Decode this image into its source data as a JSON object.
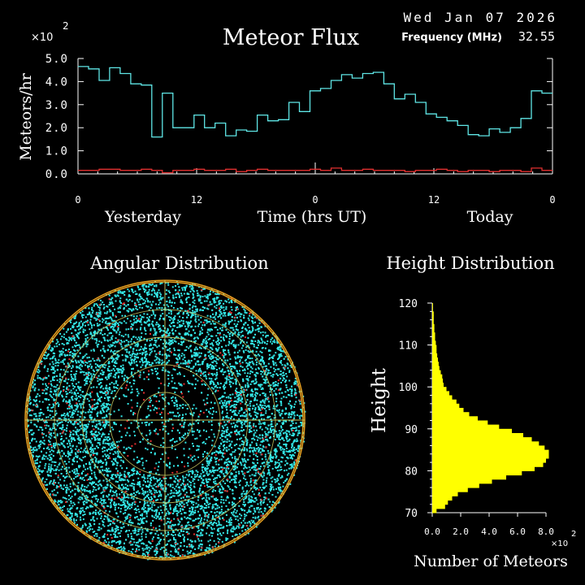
{
  "header": {
    "date": "Wed Jan 07 2026",
    "frequency_label": "Frequency (MHz)",
    "frequency_value": "32.55"
  },
  "colors": {
    "background": "#000000",
    "flux_line": "#5fe6e6",
    "baseline_line": "#e23030",
    "angular_points": "#33e6e6",
    "angular_points_secondary": "#e23030",
    "angular_rings": "#e8a020",
    "angular_crosshair": "#c8c860",
    "histogram_fill": "#ffff00",
    "axis": "#ffffff"
  },
  "chart_data": [
    {
      "type": "line",
      "title": "Meteor Flux",
      "ylabel": "Meteors/hr",
      "xlabel": "Time (hrs UT)",
      "y_multiplier_label": "×10",
      "y_multiplier_exp": "2",
      "ylim": [
        0,
        5
      ],
      "xlim": [
        0,
        48
      ],
      "y_ticks": [
        "0.0",
        "1.0",
        "2.0",
        "3.0",
        "4.0",
        "5.0"
      ],
      "x_ticks": [
        {
          "value": 0,
          "label": "0"
        },
        {
          "value": 12,
          "label": "12"
        },
        {
          "value": 24,
          "label": "0"
        },
        {
          "value": 36,
          "label": "12"
        },
        {
          "value": 48,
          "label": "0"
        }
      ],
      "day_labels": [
        "Yesterday",
        "Today"
      ],
      "step": true,
      "series": [
        {
          "values": [
            4.65,
            4.55,
            4.05,
            4.6,
            4.35,
            3.9,
            3.85,
            1.6,
            3.5,
            2.0,
            2.0,
            2.55,
            2.0,
            2.2,
            1.65,
            1.9,
            1.85,
            2.55,
            2.3,
            2.35,
            3.1,
            2.7,
            3.6,
            3.7,
            4.05,
            4.3,
            4.15,
            4.35,
            4.4,
            3.9,
            3.25,
            3.45,
            3.1,
            2.6,
            2.45,
            2.3,
            2.1,
            1.7,
            1.65,
            1.95,
            1.8,
            2.0,
            2.4,
            3.6,
            3.5
          ]
        },
        {
          "values": [
            0.15,
            0.15,
            0.2,
            0.2,
            0.15,
            0.15,
            0.2,
            0.15,
            0.05,
            0.15,
            0.15,
            0.2,
            0.15,
            0.15,
            0.2,
            0.1,
            0.15,
            0.2,
            0.15,
            0.15,
            0.15,
            0.15,
            0.2,
            0.15,
            0.25,
            0.15,
            0.15,
            0.2,
            0.15,
            0.15,
            0.15,
            0.1,
            0.15,
            0.15,
            0.2,
            0.15,
            0.1,
            0.15,
            0.15,
            0.1,
            0.15,
            0.15,
            0.1,
            0.25,
            0.15
          ]
        }
      ]
    },
    {
      "type": "scatter",
      "title": "Angular Distribution",
      "description_polar": true,
      "rings": 5,
      "cyan_point_count": 9000,
      "red_point_count": 260
    },
    {
      "type": "bar",
      "orientation": "horizontal",
      "title": "Height Distribution",
      "ylabel": "Height",
      "xlabel": "Number of Meteors",
      "x_multiplier_label": "×10",
      "x_multiplier_exp": "2",
      "ylim": [
        70,
        120
      ],
      "xlim": [
        0,
        8
      ],
      "y_ticks": [
        "70",
        "80",
        "90",
        "100",
        "110",
        "120"
      ],
      "x_ticks": [
        "0.0",
        "2.0",
        "4.0",
        "6.0",
        "8.0"
      ],
      "bins": [
        70,
        71,
        72,
        73,
        74,
        75,
        76,
        77,
        78,
        79,
        80,
        81,
        82,
        83,
        84,
        85,
        86,
        87,
        88,
        89,
        90,
        91,
        92,
        93,
        94,
        95,
        96,
        97,
        98,
        99,
        100,
        101,
        102,
        103,
        104,
        105,
        106,
        107,
        108,
        109,
        110,
        111,
        112,
        113,
        114,
        115,
        116,
        117,
        118,
        119
      ],
      "values": [
        0.3,
        0.9,
        1.1,
        1.4,
        1.8,
        2.5,
        3.3,
        4.2,
        5.2,
        6.3,
        7.2,
        7.8,
        8.0,
        8.2,
        8.2,
        7.9,
        7.5,
        7.0,
        6.4,
        5.6,
        4.7,
        3.9,
        3.2,
        2.6,
        2.2,
        1.9,
        1.7,
        1.4,
        1.2,
        1.0,
        0.8,
        0.75,
        0.7,
        0.6,
        0.5,
        0.45,
        0.4,
        0.35,
        0.3,
        0.3,
        0.25,
        0.2,
        0.2,
        0.15,
        0.15,
        0.1,
        0.1,
        0.1,
        0.05,
        0.05
      ]
    }
  ]
}
